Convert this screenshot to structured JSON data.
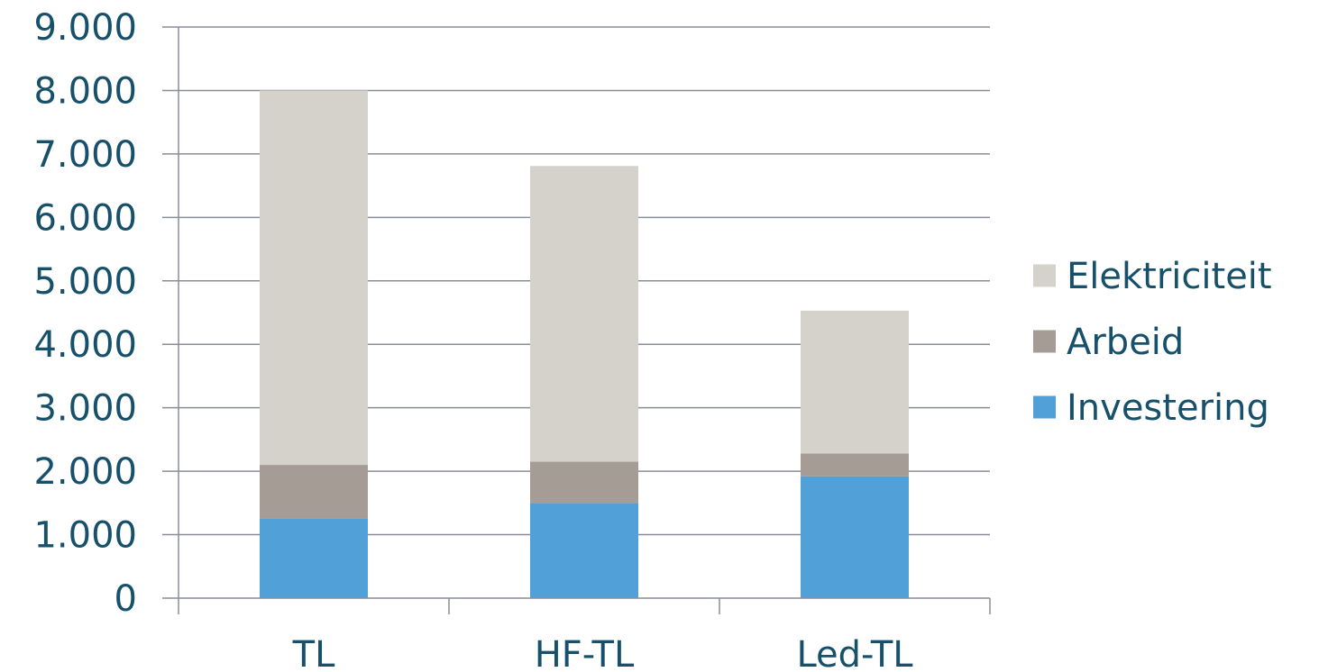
{
  "chart_data": {
    "type": "bar",
    "stacked": true,
    "categories": [
      "TL",
      "HF-TL",
      "Led-TL"
    ],
    "series": [
      {
        "name": "Investering",
        "values": [
          1250,
          1500,
          1920
        ],
        "color": "#52a0d8"
      },
      {
        "name": "Arbeid",
        "values": [
          850,
          650,
          360
        ],
        "color": "#a59c96"
      },
      {
        "name": "Elektriciteit",
        "values": [
          5900,
          4660,
          2250
        ],
        "color": "#d5d2cb"
      }
    ],
    "title": "",
    "xlabel": "",
    "ylabel": "",
    "ylim": [
      0,
      9000
    ],
    "yticks": [
      0,
      1000,
      2000,
      3000,
      4000,
      5000,
      6000,
      7000,
      8000,
      9000
    ],
    "ytick_labels": [
      "0",
      "1.000",
      "2.000",
      "3.000",
      "4.000",
      "5.000",
      "6.000",
      "7.000",
      "8.000",
      "9.000"
    ],
    "grid": true,
    "legend_position": "right",
    "legend_order": [
      "Elektriciteit",
      "Arbeid",
      "Investering"
    ],
    "text_color": "#17506b",
    "grid_color": "#8a8e99"
  }
}
